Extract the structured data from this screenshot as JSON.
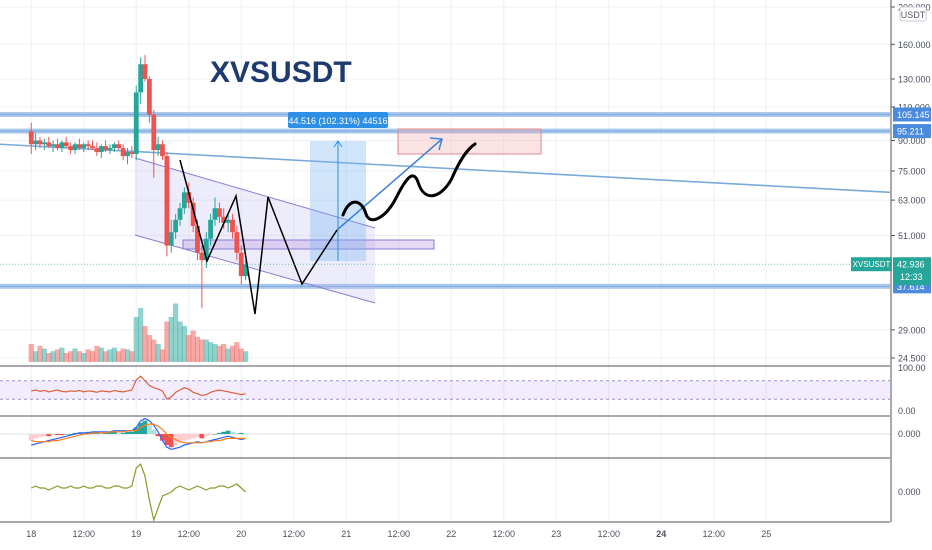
{
  "chart_data": {
    "type": "candlestick",
    "symbol_title": "XVSUSDT",
    "currency_label": "USDT",
    "price_axis": {
      "scale": "log",
      "tick_labels": [
        "200.000",
        "160.000",
        "130.000",
        "110.000",
        "90.000",
        "75.000",
        "63.000",
        "51.000",
        "37.614",
        "29.000",
        "24.500"
      ],
      "tick_values": [
        200,
        160,
        130,
        110,
        90,
        75,
        63,
        51,
        37.614,
        29,
        24.5
      ]
    },
    "time_axis": {
      "tick_labels": [
        "12:00",
        "18",
        "12:00",
        "19",
        "12:00",
        "20",
        "12:00",
        "21",
        "12:00",
        "22",
        "12:00",
        "23",
        "12:00",
        "24",
        "12:00",
        "25"
      ],
      "bold_labels": [
        "24"
      ]
    },
    "horizontal_levels": [
      {
        "label": "105.145",
        "value": 105.145
      },
      {
        "label": "95.211",
        "value": 95.211
      },
      {
        "label": "37.614",
        "value": 37.614
      }
    ],
    "current_price": {
      "symbol": "XVSUSDT",
      "price": "42.936",
      "countdown": "12:33",
      "value": 42.936
    },
    "measure_label": "44.516 (102.31%) 44516",
    "candles": [
      {
        "t": 18.0,
        "o": 95,
        "h": 100,
        "l": 83,
        "c": 88
      },
      {
        "t": 18.042,
        "o": 88,
        "h": 94,
        "l": 85,
        "c": 90
      },
      {
        "t": 18.083,
        "o": 90,
        "h": 92,
        "l": 86,
        "c": 88
      },
      {
        "t": 18.125,
        "o": 88,
        "h": 91,
        "l": 85,
        "c": 89
      },
      {
        "t": 18.167,
        "o": 89,
        "h": 92,
        "l": 86,
        "c": 87
      },
      {
        "t": 18.208,
        "o": 87,
        "h": 90,
        "l": 84,
        "c": 88
      },
      {
        "t": 18.25,
        "o": 88,
        "h": 91,
        "l": 85,
        "c": 86
      },
      {
        "t": 18.292,
        "o": 86,
        "h": 90,
        "l": 84,
        "c": 89
      },
      {
        "t": 18.333,
        "o": 89,
        "h": 92,
        "l": 86,
        "c": 87
      },
      {
        "t": 18.375,
        "o": 87,
        "h": 89,
        "l": 83,
        "c": 85
      },
      {
        "t": 18.417,
        "o": 85,
        "h": 89,
        "l": 83,
        "c": 88
      },
      {
        "t": 18.458,
        "o": 88,
        "h": 91,
        "l": 85,
        "c": 86
      },
      {
        "t": 18.5,
        "o": 86,
        "h": 89,
        "l": 84,
        "c": 88
      },
      {
        "t": 18.542,
        "o": 88,
        "h": 90,
        "l": 85,
        "c": 87
      },
      {
        "t": 18.583,
        "o": 87,
        "h": 90,
        "l": 85,
        "c": 86
      },
      {
        "t": 18.625,
        "o": 86,
        "h": 89,
        "l": 82,
        "c": 84
      },
      {
        "t": 18.667,
        "o": 84,
        "h": 88,
        "l": 81,
        "c": 87
      },
      {
        "t": 18.708,
        "o": 87,
        "h": 90,
        "l": 84,
        "c": 85
      },
      {
        "t": 18.75,
        "o": 85,
        "h": 88,
        "l": 83,
        "c": 86
      },
      {
        "t": 18.792,
        "o": 86,
        "h": 89,
        "l": 84,
        "c": 88
      },
      {
        "t": 18.833,
        "o": 88,
        "h": 90,
        "l": 85,
        "c": 86
      },
      {
        "t": 18.875,
        "o": 86,
        "h": 88,
        "l": 80,
        "c": 82
      },
      {
        "t": 18.917,
        "o": 82,
        "h": 86,
        "l": 78,
        "c": 84
      },
      {
        "t": 18.958,
        "o": 84,
        "h": 87,
        "l": 81,
        "c": 83
      },
      {
        "t": 19.0,
        "o": 83,
        "h": 125,
        "l": 80,
        "c": 120
      },
      {
        "t": 19.042,
        "o": 120,
        "h": 148,
        "l": 112,
        "c": 142
      },
      {
        "t": 19.083,
        "o": 142,
        "h": 150,
        "l": 128,
        "c": 130
      },
      {
        "t": 19.125,
        "o": 130,
        "h": 132,
        "l": 100,
        "c": 105
      },
      {
        "t": 19.167,
        "o": 105,
        "h": 108,
        "l": 72,
        "c": 85
      },
      {
        "t": 19.208,
        "o": 85,
        "h": 92,
        "l": 82,
        "c": 88
      },
      {
        "t": 19.25,
        "o": 88,
        "h": 90,
        "l": 80,
        "c": 82
      },
      {
        "t": 19.292,
        "o": 82,
        "h": 84,
        "l": 45,
        "c": 48
      },
      {
        "t": 19.333,
        "o": 48,
        "h": 56,
        "l": 46,
        "c": 52
      },
      {
        "t": 19.375,
        "o": 52,
        "h": 58,
        "l": 50,
        "c": 56
      },
      {
        "t": 19.417,
        "o": 56,
        "h": 62,
        "l": 54,
        "c": 60
      },
      {
        "t": 19.458,
        "o": 60,
        "h": 68,
        "l": 58,
        "c": 66
      },
      {
        "t": 19.5,
        "o": 66,
        "h": 70,
        "l": 60,
        "c": 62
      },
      {
        "t": 19.542,
        "o": 62,
        "h": 64,
        "l": 52,
        "c": 54
      },
      {
        "t": 19.583,
        "o": 54,
        "h": 56,
        "l": 44,
        "c": 46
      },
      {
        "t": 19.625,
        "o": 46,
        "h": 48,
        "l": 33,
        "c": 44
      },
      {
        "t": 19.667,
        "o": 44,
        "h": 52,
        "l": 42,
        "c": 50
      },
      {
        "t": 19.708,
        "o": 50,
        "h": 58,
        "l": 48,
        "c": 56
      },
      {
        "t": 19.75,
        "o": 56,
        "h": 64,
        "l": 54,
        "c": 60
      },
      {
        "t": 19.792,
        "o": 60,
        "h": 62,
        "l": 55,
        "c": 57
      },
      {
        "t": 19.833,
        "o": 57,
        "h": 60,
        "l": 53,
        "c": 55
      },
      {
        "t": 19.875,
        "o": 55,
        "h": 58,
        "l": 52,
        "c": 56
      },
      {
        "t": 19.917,
        "o": 56,
        "h": 58,
        "l": 50,
        "c": 52
      },
      {
        "t": 19.958,
        "o": 52,
        "h": 54,
        "l": 44,
        "c": 46
      },
      {
        "t": 20.0,
        "o": 46,
        "h": 48,
        "l": 38,
        "c": 40
      },
      {
        "t": 20.042,
        "o": 40,
        "h": 44,
        "l": 39,
        "c": 42.936
      }
    ],
    "volume_percent": [
      20,
      12,
      18,
      15,
      10,
      12,
      14,
      16,
      10,
      12,
      15,
      12,
      10,
      14,
      12,
      18,
      16,
      12,
      14,
      16,
      12,
      15,
      14,
      12,
      50,
      60,
      40,
      30,
      25,
      20,
      14,
      45,
      50,
      65,
      45,
      40,
      30,
      35,
      28,
      25,
      25,
      22,
      20,
      18,
      20,
      15,
      18,
      22,
      15,
      12
    ],
    "rsi": {
      "label_top": "100.00",
      "label_bottom": "0.00",
      "upper": 70,
      "lower": 30,
      "values": [
        48,
        50,
        47,
        49,
        46,
        48,
        50,
        47,
        46,
        48,
        47,
        49,
        46,
        48,
        47,
        45,
        48,
        47,
        46,
        49,
        47,
        46,
        48,
        50,
        72,
        80,
        70,
        60,
        55,
        52,
        48,
        30,
        35,
        45,
        50,
        55,
        52,
        45,
        42,
        38,
        40,
        45,
        48,
        50,
        48,
        46,
        44,
        42,
        40,
        42
      ]
    },
    "macd": {
      "zero_label": "0.000",
      "hist": [
        -6,
        -4,
        -3,
        -2,
        -2,
        -1,
        -1,
        -1,
        0,
        0,
        1,
        1,
        1,
        2,
        2,
        2,
        1,
        1,
        2,
        2,
        1,
        1,
        2,
        2,
        6,
        10,
        12,
        8,
        4,
        -2,
        -6,
        -10,
        -12,
        -10,
        -8,
        -6,
        -5,
        -4,
        -3,
        -4,
        -2,
        -1,
        0,
        1,
        2,
        3,
        2,
        1,
        1,
        0
      ],
      "macd": [
        -10,
        -9,
        -8,
        -7,
        -6,
        -5,
        -4,
        -3,
        -2,
        -1,
        0,
        1,
        1,
        1,
        2,
        2,
        2,
        2,
        2,
        3,
        3,
        3,
        3,
        3,
        6,
        12,
        14,
        12,
        8,
        2,
        -6,
        -12,
        -14,
        -13,
        -12,
        -10,
        -9,
        -8,
        -7,
        -8,
        -7,
        -6,
        -5,
        -4,
        -3,
        -2,
        -3,
        -4,
        -5,
        -4
      ],
      "signal": [
        -6,
        -7,
        -7,
        -7,
        -7,
        -6,
        -6,
        -5,
        -4,
        -3,
        -2,
        -1,
        0,
        0,
        1,
        1,
        1,
        1,
        2,
        2,
        2,
        2,
        3,
        3,
        3,
        6,
        8,
        9,
        9,
        7,
        4,
        0,
        -3,
        -5,
        -7,
        -8,
        -8,
        -8,
        -8,
        -8,
        -7,
        -7,
        -6,
        -6,
        -5,
        -4,
        -4,
        -4,
        -4,
        -4
      ]
    },
    "oscillator": {
      "zero_label": "0.000",
      "values": [
        2,
        3,
        2,
        2,
        1,
        2,
        3,
        2,
        2,
        3,
        2,
        2,
        3,
        2,
        2,
        3,
        3,
        2,
        2,
        3,
        3,
        2,
        2,
        3,
        12,
        14,
        8,
        -4,
        -14,
        -8,
        -2,
        -1,
        0,
        2,
        3,
        2,
        1,
        2,
        3,
        2,
        1,
        2,
        2,
        3,
        3,
        2,
        3,
        4,
        2,
        0
      ]
    }
  }
}
